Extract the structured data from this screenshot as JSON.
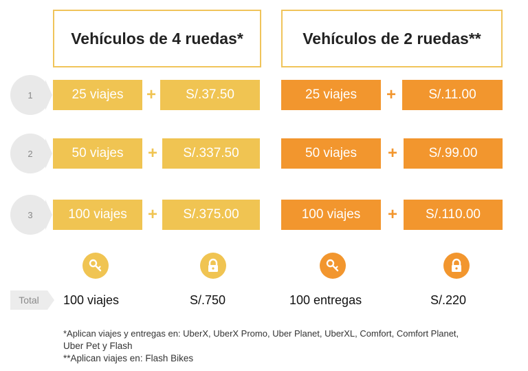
{
  "headers": {
    "four_wheels": "Vehículos de 4 ruedas*",
    "two_wheels": "Vehículos de 2 ruedas**"
  },
  "tiers": [
    {
      "number": "1",
      "four_trips": "25 viajes",
      "four_amount": "S/.37.50",
      "two_trips": "25 viajes",
      "two_amount": "S/.11.00"
    },
    {
      "number": "2",
      "four_trips": "50 viajes",
      "four_amount": "S/.337.50",
      "two_trips": "50 viajes",
      "two_amount": "S/.99.00"
    },
    {
      "number": "3",
      "four_trips": "100 viajes",
      "four_amount": "S/.375.00",
      "two_trips": "100 viajes",
      "two_amount": "S/.110.00"
    }
  ],
  "plus_symbol": "+",
  "icons": [
    "key-icon",
    "lock-icon",
    "key-icon",
    "lock-icon"
  ],
  "totals": {
    "label": "Total",
    "four_trips": "100 viajes",
    "four_amount": "S/.750",
    "two_trips": "100 entregas",
    "two_amount": "S/.220"
  },
  "footnotes": {
    "line1": "*Aplican viajes y entregas  en: UberX, UberX Promo, Uber Planet, UberXL, Comfort, Comfort Planet,",
    "line2": "Uber Pet y Flash",
    "line3": "**Aplican viajes  en: Flash Bikes"
  },
  "colors": {
    "yellow": "#f0c452",
    "orange": "#f2962e",
    "gray": "#e9e9e9"
  }
}
